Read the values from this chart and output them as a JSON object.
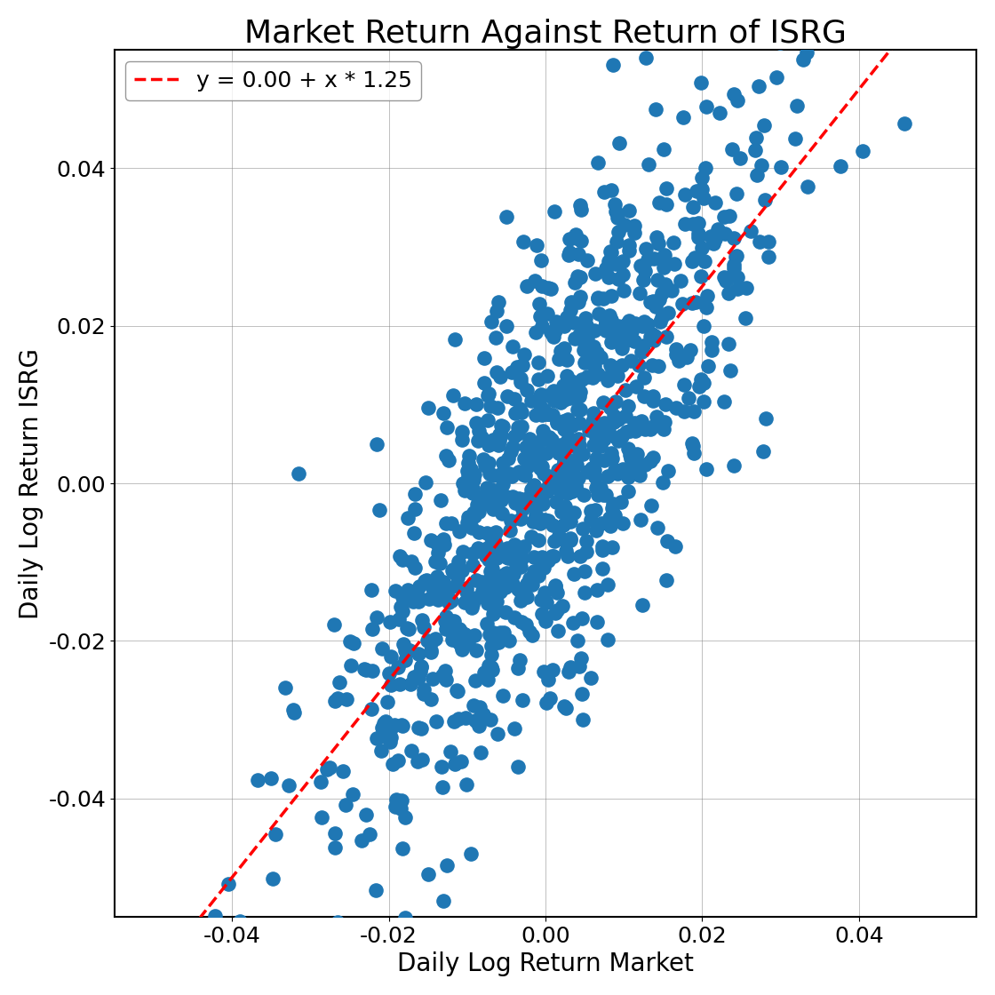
{
  "title": "Market Return Against Return of ISRG",
  "xlabel": "Daily Log Return Market",
  "ylabel": "Daily Log Return ISRG",
  "legend_label": "y = 0.00 + x * 1.25",
  "intercept": 0.0,
  "slope": 1.25,
  "xlim": [
    -0.055,
    0.055
  ],
  "ylim": [
    -0.055,
    0.055
  ],
  "xticks": [
    -0.04,
    -0.02,
    0.0,
    0.02,
    0.04
  ],
  "yticks": [
    -0.04,
    -0.02,
    0.0,
    0.02,
    0.04
  ],
  "scatter_color": "#1f77b4",
  "line_color": "#ff0000",
  "background_color": "#ffffff",
  "title_fontsize": 26,
  "label_fontsize": 20,
  "tick_fontsize": 18,
  "legend_fontsize": 18,
  "marker_size": 120,
  "n_points": 1000,
  "seed": 42,
  "market_std": 0.013,
  "noise_std": 0.013
}
